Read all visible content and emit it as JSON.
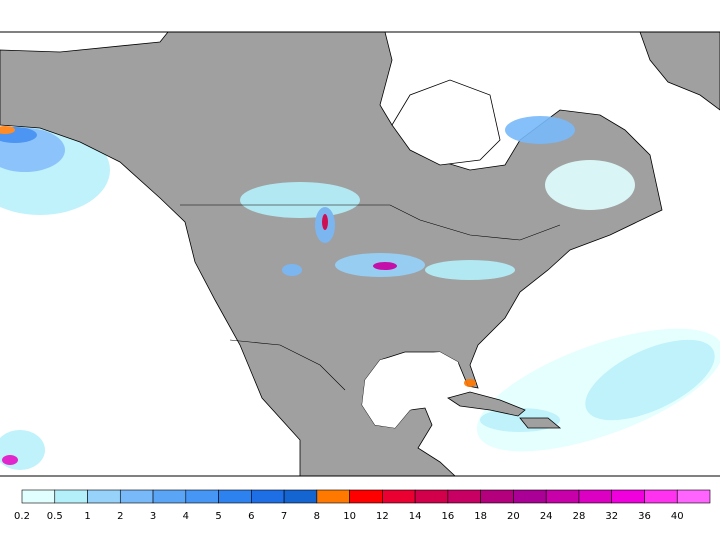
{
  "legend": {
    "labels": [
      0.2,
      0.5,
      1,
      2,
      3,
      4,
      5,
      6,
      7,
      8,
      10,
      12,
      14,
      16,
      18,
      20,
      24,
      28,
      32,
      36,
      40
    ],
    "colors": [
      "#e1ffff",
      "#b4f0fa",
      "#96d2fa",
      "#78b9fa",
      "#5aa5f5",
      "#4696f5",
      "#2d82f0",
      "#1e6ee6",
      "#1464d2",
      "#ff7800",
      "#ff0000",
      "#eb0032",
      "#d2004b",
      "#c80064",
      "#b4007d",
      "#aa0096",
      "#c800aa",
      "#dc00c3",
      "#f000dc",
      "#ff32f0",
      "#ff64ff"
    ]
  }
}
